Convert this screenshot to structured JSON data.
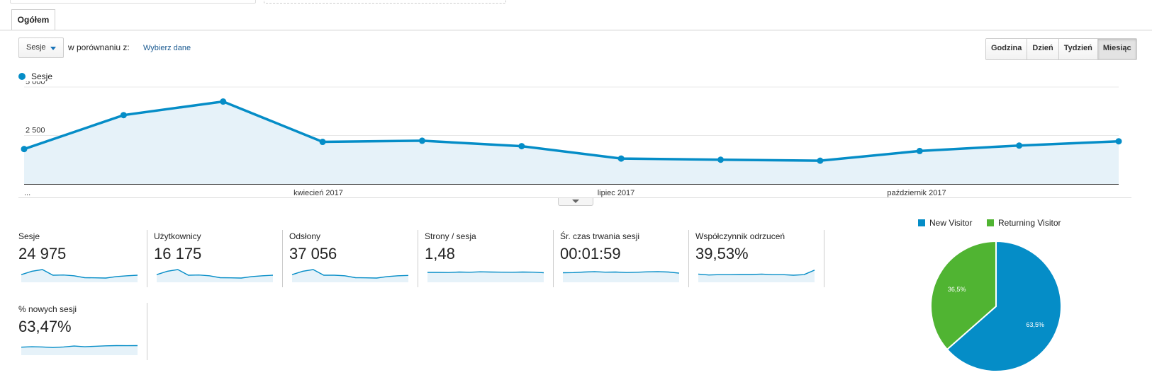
{
  "tabs": [
    {
      "label": "Ogółem"
    }
  ],
  "toolbar": {
    "metric_select": "Sesje",
    "compare_label": "w porównaniu z:",
    "compare_link": "Wybierz dane",
    "periods": [
      "Godzina",
      "Dzień",
      "Tydzień",
      "Miesiąc"
    ],
    "active_period": "Miesiąc"
  },
  "colors": {
    "accent": "#058dc7",
    "new_visitor": "#058dc7",
    "returning_visitor": "#50b432"
  },
  "chart_data": [
    {
      "type": "area",
      "series": [
        {
          "name": "Sesje",
          "values": [
            1800,
            3550,
            4250,
            2170,
            2230,
            1950,
            1310,
            1250,
            1200,
            1700,
            1980,
            2200
          ]
        }
      ],
      "ylim": [
        0,
        5000
      ],
      "yticks": [
        "2 500",
        "5 000"
      ],
      "x_labels": [
        "...",
        "kwiecień 2017",
        "lipiec 2017",
        "październik 2017"
      ],
      "grid": true,
      "legend": "top-left"
    },
    {
      "type": "pie",
      "labels": [
        "New Visitor",
        "Returning Visitor"
      ],
      "values": [
        63.5,
        36.5
      ],
      "value_labels": [
        "63,5%",
        "36,5%"
      ],
      "legend": "top"
    }
  ],
  "metrics": [
    {
      "label": "Sesje",
      "value": "24 975",
      "spark": [
        0.55,
        0.85,
        1.0,
        0.5,
        0.52,
        0.45,
        0.28,
        0.27,
        0.25,
        0.38,
        0.45,
        0.5
      ]
    },
    {
      "label": "Użytkownicy",
      "value": "16 175",
      "spark": [
        0.55,
        0.85,
        1.0,
        0.5,
        0.52,
        0.45,
        0.28,
        0.27,
        0.25,
        0.38,
        0.45,
        0.5
      ]
    },
    {
      "label": "Odsłony",
      "value": "37 056",
      "spark": [
        0.55,
        0.85,
        1.0,
        0.5,
        0.5,
        0.45,
        0.28,
        0.27,
        0.25,
        0.38,
        0.45,
        0.48
      ]
    },
    {
      "label": "Strony / sesja",
      "value": "1,48",
      "spark": [
        0.75,
        0.75,
        0.74,
        0.78,
        0.76,
        0.8,
        0.78,
        0.77,
        0.76,
        0.78,
        0.77,
        0.72
      ]
    },
    {
      "label": "Śr. czas trwania sesji",
      "value": "00:01:59",
      "spark": [
        0.72,
        0.73,
        0.78,
        0.82,
        0.77,
        0.78,
        0.74,
        0.76,
        0.8,
        0.82,
        0.78,
        0.68
      ]
    },
    {
      "label": "Współczynnik odrzuceń",
      "value": "39,53%",
      "spark": [
        0.6,
        0.52,
        0.55,
        0.55,
        0.56,
        0.56,
        0.6,
        0.55,
        0.55,
        0.5,
        0.55,
        0.95
      ]
    },
    {
      "label": "% nowych sesji",
      "value": "63,47%",
      "spark": [
        0.58,
        0.62,
        0.6,
        0.55,
        0.6,
        0.68,
        0.62,
        0.66,
        0.7,
        0.72,
        0.71,
        0.72
      ]
    }
  ]
}
